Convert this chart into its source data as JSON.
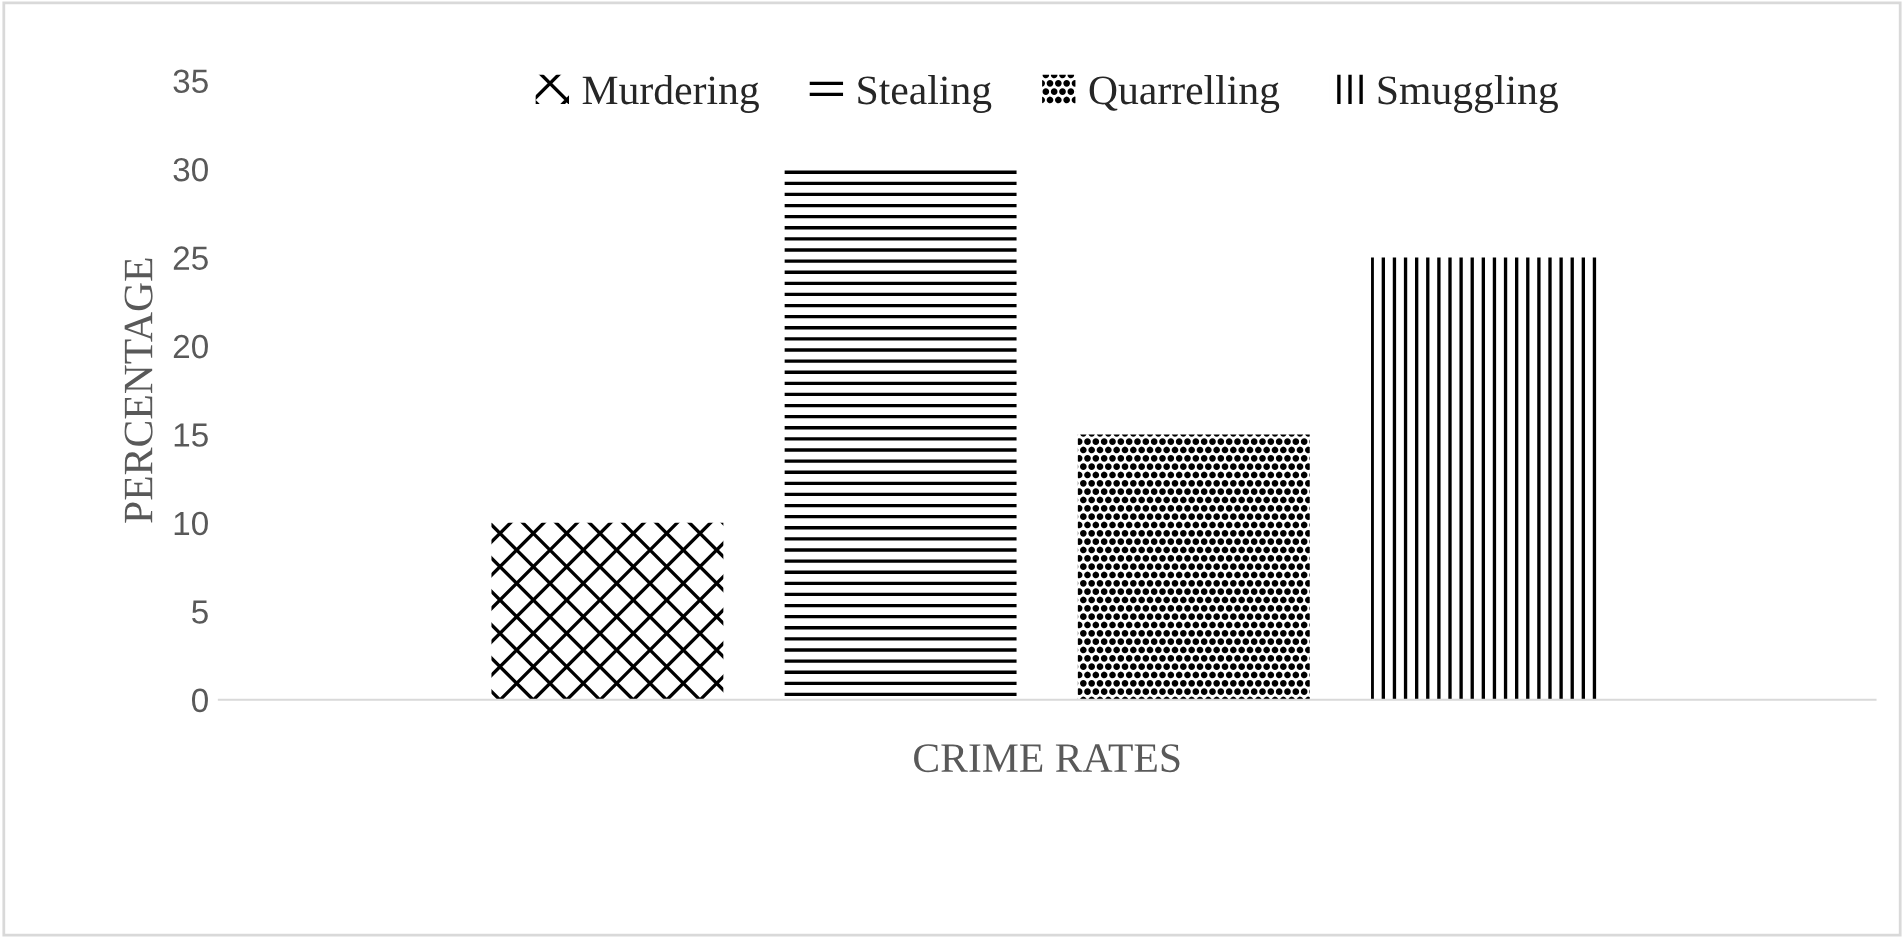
{
  "chart_data": {
    "type": "bar",
    "xlabel": "CRIME RATES",
    "ylabel": "PERCENTAGE",
    "categories": [
      null
    ],
    "series": [
      {
        "name": "Murdering",
        "color": "#000000",
        "values": [
          10
        ]
      },
      {
        "name": "Stealing",
        "color": "#000000",
        "values": [
          30
        ]
      },
      {
        "name": "Quarrelling",
        "color": "#000000",
        "values": [
          15
        ]
      },
      {
        "name": "Smuggling",
        "color": "#000000",
        "values": [
          25
        ]
      }
    ],
    "ylim": [
      0,
      35
    ],
    "yticks": [
      0,
      5,
      10,
      15,
      20,
      25,
      30,
      35
    ],
    "grid": false,
    "legend": "top"
  }
}
